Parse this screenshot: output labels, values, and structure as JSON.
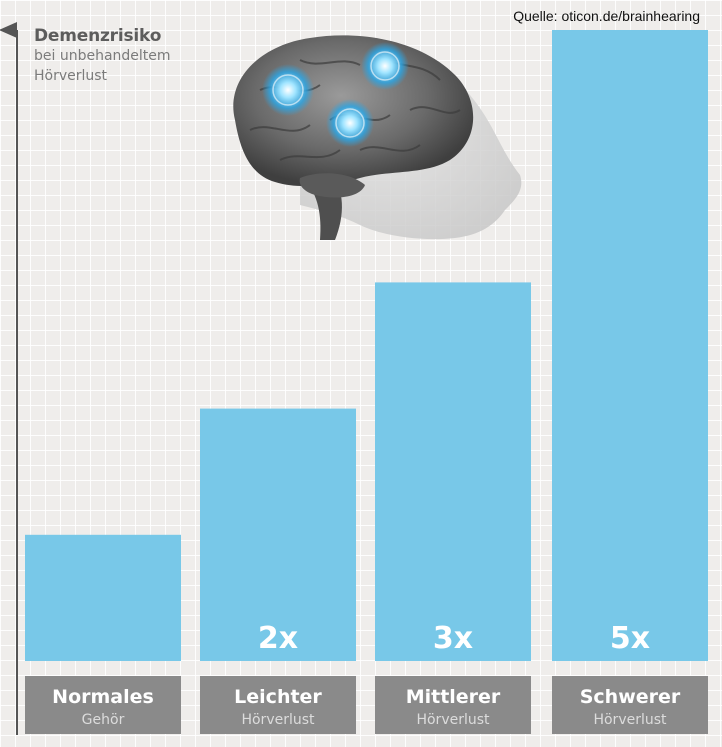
{
  "source": "Quelle: oticon.de/brainhearing",
  "chart_data": {
    "type": "bar",
    "title": "Demenzrisiko",
    "subtitle_lines": [
      "bei unbehandeltem",
      "Hörverlust"
    ],
    "categories": [
      {
        "line1": "Normales",
        "line2": "Gehör"
      },
      {
        "line1": "Leichter",
        "line2": "Hörverlust"
      },
      {
        "line1": "Mittlerer",
        "line2": "Hörverlust"
      },
      {
        "line1": "Schwerer",
        "line2": "Hörverlust"
      }
    ],
    "values": [
      1,
      2,
      3,
      5
    ],
    "value_labels": [
      "",
      "2x",
      "3x",
      "5x"
    ],
    "ylim": [
      0,
      5
    ],
    "colors": {
      "bar": "#78c8e8",
      "label_box": "#8a8a8a",
      "axis": "#555555"
    },
    "grid": true,
    "illustration": "brain-icon"
  }
}
